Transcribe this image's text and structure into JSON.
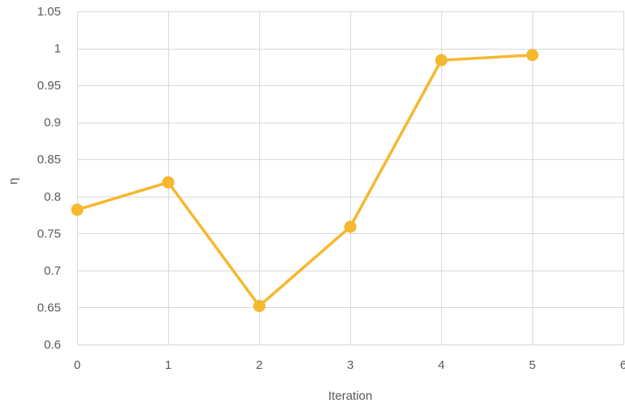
{
  "chart_data": {
    "type": "line",
    "xlabel": "Iteration",
    "ylabel": "η",
    "xlim": [
      0,
      6
    ],
    "ylim": [
      0.6,
      1.05
    ],
    "xticks": [
      0,
      1,
      2,
      3,
      4,
      5,
      6
    ],
    "yticks": [
      0.6,
      0.65,
      0.7,
      0.75,
      0.8,
      0.85,
      0.9,
      0.95,
      1,
      1.05
    ],
    "grid": true,
    "legend": "none",
    "series": [
      {
        "color": "#F5B82E",
        "x": [
          0,
          1,
          2,
          3,
          4,
          5
        ],
        "y": [
          0.782,
          0.819,
          0.652,
          0.759,
          0.984,
          0.991
        ]
      }
    ]
  }
}
